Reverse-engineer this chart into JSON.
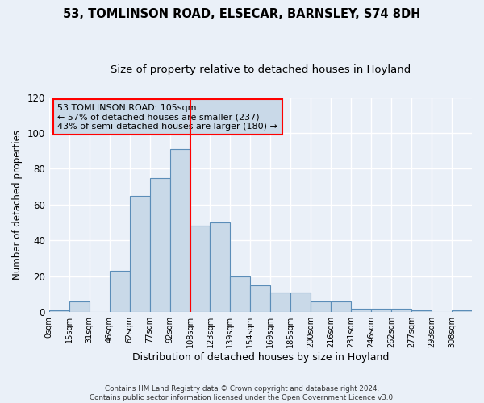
{
  "title1": "53, TOMLINSON ROAD, ELSECAR, BARNSLEY, S74 8DH",
  "title2": "Size of property relative to detached houses in Hoyland",
  "xlabel": "Distribution of detached houses by size in Hoyland",
  "ylabel": "Number of detached properties",
  "bin_labels": [
    "0sqm",
    "15sqm",
    "31sqm",
    "46sqm",
    "62sqm",
    "77sqm",
    "92sqm",
    "108sqm",
    "123sqm",
    "139sqm",
    "154sqm",
    "169sqm",
    "185sqm",
    "200sqm",
    "216sqm",
    "231sqm",
    "246sqm",
    "262sqm",
    "277sqm",
    "293sqm",
    "308sqm"
  ],
  "bar_heights": [
    1,
    6,
    0,
    23,
    65,
    75,
    91,
    48,
    50,
    20,
    15,
    11,
    11,
    6,
    6,
    2,
    2,
    2,
    1,
    0,
    1
  ],
  "bar_color": "#c9d9e8",
  "bar_edge_color": "#5b8db8",
  "vline_x": 7,
  "vline_color": "red",
  "annotation_line1": "53 TOMLINSON ROAD: 105sqm",
  "annotation_line2": "← 57% of detached houses are smaller (237)",
  "annotation_line3": "43% of semi-detached houses are larger (180) →",
  "annotation_box_color": "#c9d9e8",
  "annotation_box_edge": "red",
  "ylim": [
    0,
    120
  ],
  "yticks": [
    0,
    20,
    40,
    60,
    80,
    100,
    120
  ],
  "footer1": "Contains HM Land Registry data © Crown copyright and database right 2024.",
  "footer2": "Contains public sector information licensed under the Open Government Licence v3.0.",
  "bg_color": "#eaf0f8",
  "grid_color": "white"
}
